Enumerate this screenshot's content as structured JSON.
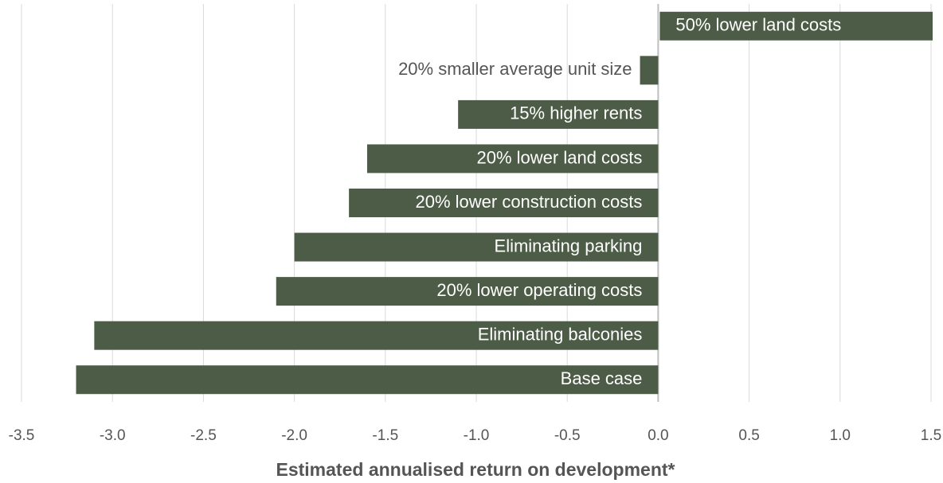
{
  "chart_data": {
    "type": "barh",
    "x_label": "Estimated annualised return on development*",
    "categories": [
      "50% lower land costs",
      "20% smaller average unit size",
      "15% higher rents",
      "20% lower land costs",
      "20% lower construction costs",
      "Eliminating parking",
      "20% lower operating costs",
      "Eliminating balconies",
      "Base case"
    ],
    "values": [
      1.5,
      -0.1,
      -1.1,
      -1.6,
      -1.7,
      -2.0,
      -2.1,
      -3.1,
      -3.2
    ],
    "color": "#4d5c46",
    "xlim": [
      -3.5,
      1.5
    ],
    "xticks": [
      -3.5,
      {
        "value": -3.0,
        "label": "-3.0"
      },
      -2.5,
      {
        "value": -2.0,
        "label": "-2.0"
      },
      -1.5,
      {
        "value": -1.0,
        "label": "-1.0"
      },
      -0.5,
      {
        "value": 0.0,
        "label": "0.0"
      },
      0.5,
      {
        "value": 1.0,
        "label": "1.0"
      },
      1.5
    ],
    "grid": true
  }
}
